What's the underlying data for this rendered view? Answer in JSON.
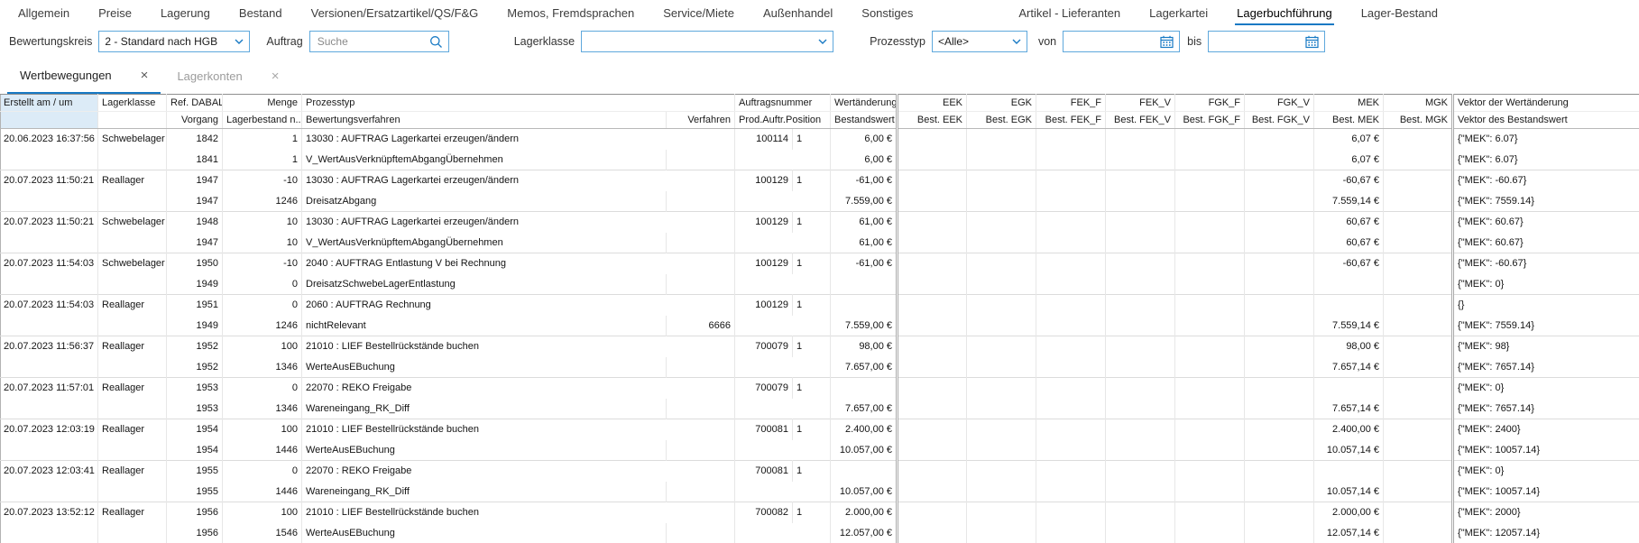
{
  "tabs": {
    "groups": [
      [
        "Allgemein",
        "Preise",
        "Lagerung",
        "Bestand",
        "Versionen/Ersatzartikel/QS/F&G",
        "Memos, Fremdsprachen",
        "Service/Miete",
        "Außenhandel",
        "Sonstiges"
      ],
      [
        "Artikel - Lieferanten",
        "Lagerkartei",
        "Lagerbuchführung",
        "Lager-Bestand"
      ]
    ],
    "active": "Lagerbuchführung"
  },
  "filters": {
    "bewertungskreis": {
      "label": "Bewertungskreis",
      "value": "2 - Standard nach HGB"
    },
    "auftrag": {
      "label": "Auftrag",
      "placeholder": "Suche"
    },
    "lagerklasse": {
      "label": "Lagerklasse",
      "value": ""
    },
    "prozesstyp": {
      "label": "Prozesstyp",
      "value": "<Alle>"
    },
    "von": {
      "label": "von",
      "value": ""
    },
    "bis": {
      "label": "bis",
      "value": ""
    }
  },
  "subtabs": [
    {
      "label": "Wertbewegungen",
      "active": true
    },
    {
      "label": "Lagerkonten",
      "active": false
    }
  ],
  "grid": {
    "header_row1": [
      "Erstellt am / um",
      "Lagerklasse",
      "Ref. DABALB",
      "Menge",
      "Prozesstyp",
      "Auftragsnummer",
      "Wertänderung",
      "EEK",
      "EGK",
      "FEK_F",
      "FEK_V",
      "FGK_F",
      "FGK_V",
      "MEK",
      "MGK",
      "Vektor der Wertänderung"
    ],
    "header_row2": [
      "Vorgang",
      "Lagerbestand n...",
      "Bewertungsverfahren",
      "Verfahren",
      "Prod.Auftr.Position",
      "Bestandswert",
      "Best. EEK",
      "Best. EGK",
      "Best. FEK_F",
      "Best. FEK_V",
      "Best. FGK_F",
      "Best. FGK_V",
      "Best. MEK",
      "Best. MGK",
      "Vektor des Bestandswert"
    ],
    "records": [
      {
        "erstellt": "20.06.2023 16:37:56",
        "lagerklasse": "Schwebelager",
        "ref_dabalb": "1842",
        "menge": "1",
        "prozesstyp": "13030 : AUFTRAG Lagerkartei erzeugen/ändern",
        "auftragsnummer": "100114",
        "position": "1",
        "wertaenderung": "6,00 €",
        "mek": "6,07 €",
        "vektor_wertaenderung": "{\"MEK\": 6.07}",
        "vorgang": "1841",
        "lagerbestand": "1",
        "bewertungsverfahren": "V_WertAusVerknüpftemAbgangÜbernehmen",
        "verfahren": "",
        "bestandswert": "6,00 €",
        "best_mek": "6,07 €",
        "vektor_bestandswert": "{\"MEK\": 6.07}"
      },
      {
        "erstellt": "20.07.2023 11:50:21",
        "lagerklasse": "Reallager",
        "ref_dabalb": "1947",
        "menge": "-10",
        "prozesstyp": "13030 : AUFTRAG Lagerkartei erzeugen/ändern",
        "auftragsnummer": "100129",
        "position": "1",
        "wertaenderung": "-61,00 €",
        "mek": "-60,67 €",
        "vektor_wertaenderung": "{\"MEK\": -60.67}",
        "vorgang": "1947",
        "lagerbestand": "1246",
        "bewertungsverfahren": "DreisatzAbgang",
        "verfahren": "",
        "bestandswert": "7.559,00 €",
        "best_mek": "7.559,14 €",
        "vektor_bestandswert": "{\"MEK\": 7559.14}"
      },
      {
        "erstellt": "20.07.2023 11:50:21",
        "lagerklasse": "Schwebelager",
        "ref_dabalb": "1948",
        "menge": "10",
        "prozesstyp": "13030 : AUFTRAG Lagerkartei erzeugen/ändern",
        "auftragsnummer": "100129",
        "position": "1",
        "wertaenderung": "61,00 €",
        "mek": "60,67 €",
        "vektor_wertaenderung": "{\"MEK\": 60.67}",
        "vorgang": "1947",
        "lagerbestand": "10",
        "bewertungsverfahren": "V_WertAusVerknüpftemAbgangÜbernehmen",
        "verfahren": "",
        "bestandswert": "61,00 €",
        "best_mek": "60,67 €",
        "vektor_bestandswert": "{\"MEK\": 60.67}"
      },
      {
        "erstellt": "20.07.2023 11:54:03",
        "lagerklasse": "Schwebelager",
        "ref_dabalb": "1950",
        "menge": "-10",
        "prozesstyp": "2040 : AUFTRAG Entlastung V bei Rechnung",
        "auftragsnummer": "100129",
        "position": "1",
        "wertaenderung": "-61,00 €",
        "mek": "-60,67 €",
        "vektor_wertaenderung": "{\"MEK\": -60.67}",
        "vorgang": "1949",
        "lagerbestand": "0",
        "bewertungsverfahren": "DreisatzSchwebeLagerEntlastung",
        "verfahren": "",
        "bestandswert": "",
        "best_mek": "",
        "vektor_bestandswert": "{\"MEK\": 0}"
      },
      {
        "erstellt": "20.07.2023 11:54:03",
        "lagerklasse": "Reallager",
        "ref_dabalb": "1951",
        "menge": "0",
        "prozesstyp": "2060 : AUFTRAG Rechnung",
        "auftragsnummer": "100129",
        "position": "1",
        "wertaenderung": "",
        "mek": "",
        "vektor_wertaenderung": "{}",
        "vorgang": "1949",
        "lagerbestand": "1246",
        "bewertungsverfahren": "nichtRelevant",
        "verfahren": "6666",
        "bestandswert": "7.559,00 €",
        "best_mek": "7.559,14 €",
        "vektor_bestandswert": "{\"MEK\": 7559.14}"
      },
      {
        "erstellt": "20.07.2023 11:56:37",
        "lagerklasse": "Reallager",
        "ref_dabalb": "1952",
        "menge": "100",
        "prozesstyp": "21010 : LIEF Bestellrückstände buchen",
        "auftragsnummer": "700079",
        "position": "1",
        "wertaenderung": "98,00 €",
        "mek": "98,00 €",
        "vektor_wertaenderung": "{\"MEK\": 98}",
        "vorgang": "1952",
        "lagerbestand": "1346",
        "bewertungsverfahren": "WerteAusEBuchung",
        "verfahren": "",
        "bestandswert": "7.657,00 €",
        "best_mek": "7.657,14 €",
        "vektor_bestandswert": "{\"MEK\": 7657.14}"
      },
      {
        "erstellt": "20.07.2023 11:57:01",
        "lagerklasse": "Reallager",
        "ref_dabalb": "1953",
        "menge": "0",
        "prozesstyp": "22070 : REKO Freigabe",
        "auftragsnummer": "700079",
        "position": "1",
        "wertaenderung": "",
        "mek": "",
        "vektor_wertaenderung": "{\"MEK\": 0}",
        "vorgang": "1953",
        "lagerbestand": "1346",
        "bewertungsverfahren": "Wareneingang_RK_Diff",
        "verfahren": "",
        "bestandswert": "7.657,00 €",
        "best_mek": "7.657,14 €",
        "vektor_bestandswert": "{\"MEK\": 7657.14}"
      },
      {
        "erstellt": "20.07.2023 12:03:19",
        "lagerklasse": "Reallager",
        "ref_dabalb": "1954",
        "menge": "100",
        "prozesstyp": "21010 : LIEF Bestellrückstände buchen",
        "auftragsnummer": "700081",
        "position": "1",
        "wertaenderung": "2.400,00 €",
        "mek": "2.400,00 €",
        "vektor_wertaenderung": "{\"MEK\": 2400}",
        "vorgang": "1954",
        "lagerbestand": "1446",
        "bewertungsverfahren": "WerteAusEBuchung",
        "verfahren": "",
        "bestandswert": "10.057,00 €",
        "best_mek": "10.057,14 €",
        "vektor_bestandswert": "{\"MEK\": 10057.14}"
      },
      {
        "erstellt": "20.07.2023 12:03:41",
        "lagerklasse": "Reallager",
        "ref_dabalb": "1955",
        "menge": "0",
        "prozesstyp": "22070 : REKO Freigabe",
        "auftragsnummer": "700081",
        "position": "1",
        "wertaenderung": "",
        "mek": "",
        "vektor_wertaenderung": "{\"MEK\": 0}",
        "vorgang": "1955",
        "lagerbestand": "1446",
        "bewertungsverfahren": "Wareneingang_RK_Diff",
        "verfahren": "",
        "bestandswert": "10.057,00 €",
        "best_mek": "10.057,14 €",
        "vektor_bestandswert": "{\"MEK\": 10057.14}"
      },
      {
        "erstellt": "20.07.2023 13:52:12",
        "lagerklasse": "Reallager",
        "ref_dabalb": "1956",
        "menge": "100",
        "prozesstyp": "21010 : LIEF Bestellrückstände buchen",
        "auftragsnummer": "700082",
        "position": "1",
        "wertaenderung": "2.000,00 €",
        "mek": "2.000,00 €",
        "vektor_wertaenderung": "{\"MEK\": 2000}",
        "vorgang": "1956",
        "lagerbestand": "1546",
        "bewertungsverfahren": "WerteAusEBuchung",
        "verfahren": "",
        "bestandswert": "12.057,00 €",
        "best_mek": "12.057,14 €",
        "vektor_bestandswert": "{\"MEK\": 12057.14}"
      }
    ]
  },
  "colors": {
    "accent": "#1779c4",
    "input_border": "#5fa8dc",
    "selected_header_bg": "#dcebf7",
    "inactive_tab_text": "#9c9c9c",
    "grid_line": "#e7e7e7"
  }
}
